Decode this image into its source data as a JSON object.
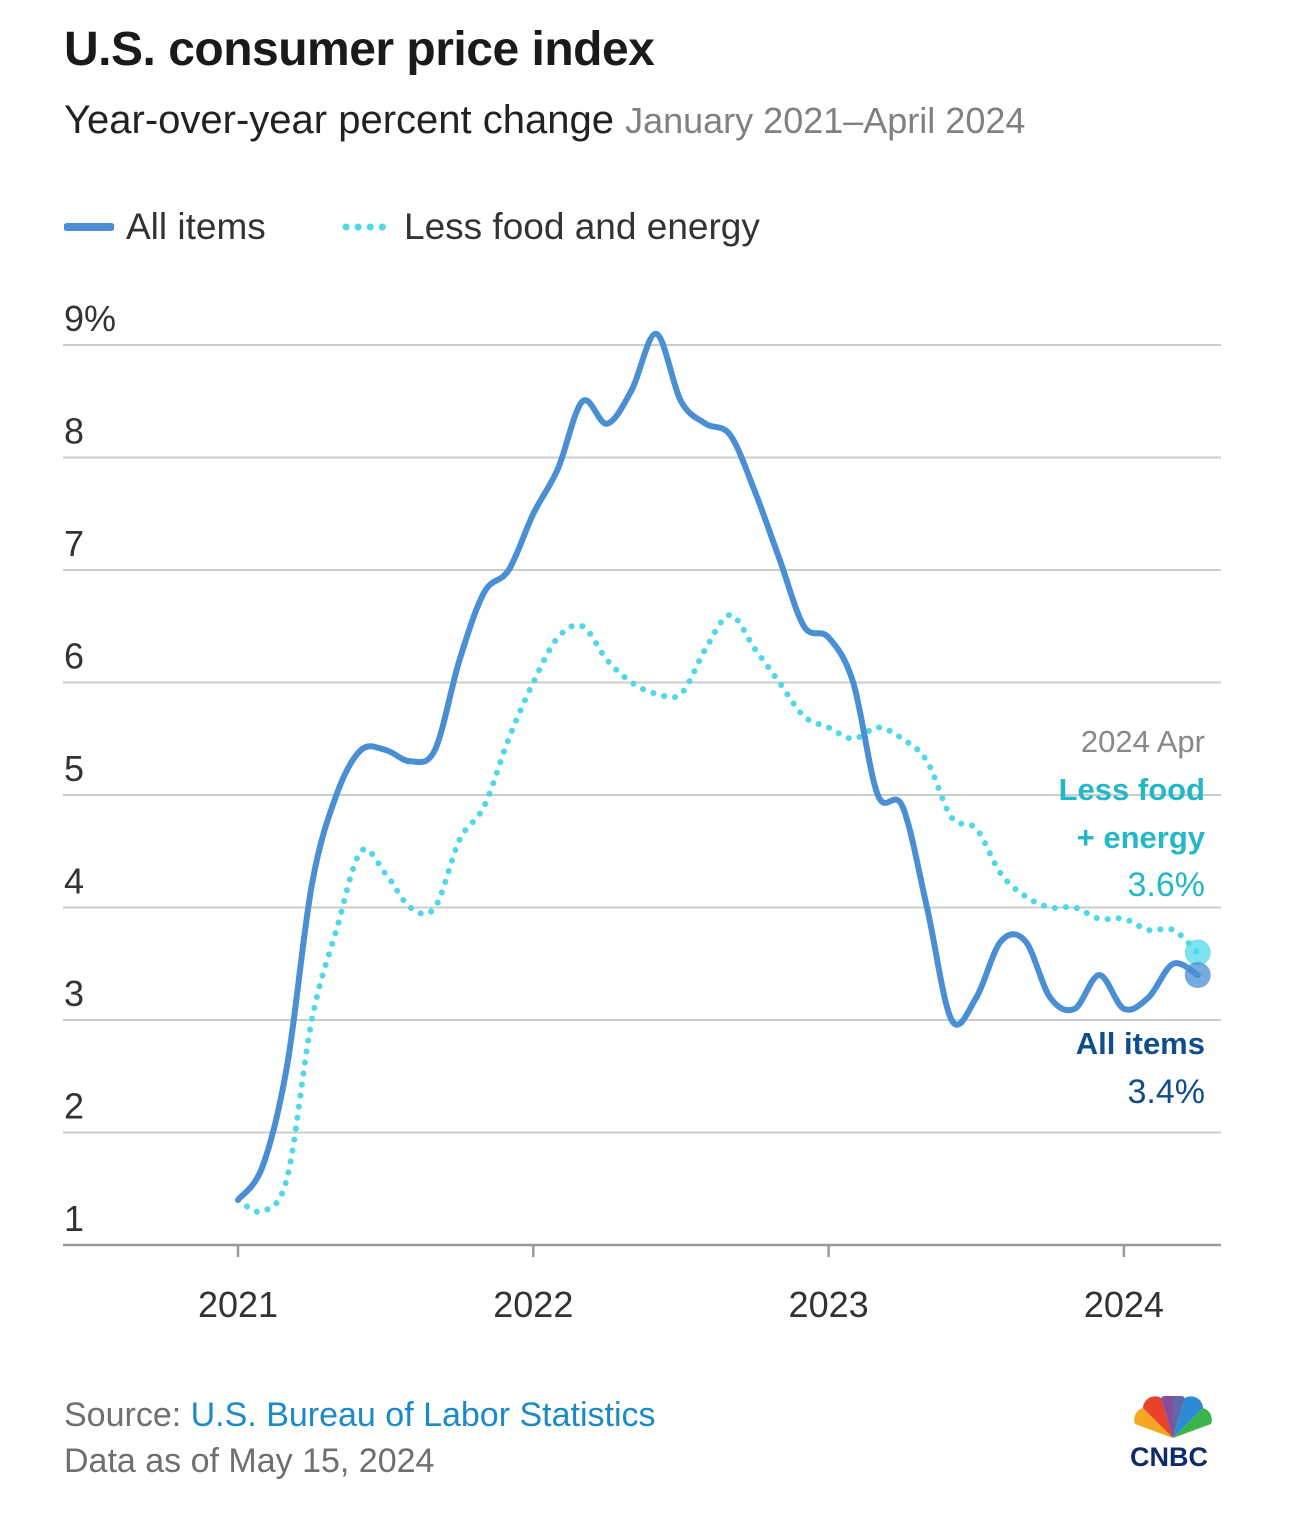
{
  "header": {
    "title": "U.S. consumer price index",
    "subtitle": "Year-over-year percent change",
    "date_range": "January 2021–April 2024"
  },
  "legend": {
    "items": [
      {
        "label": "All items",
        "style": "solid",
        "color": "#4a8fd4"
      },
      {
        "label": "Less food and energy",
        "style": "dotted",
        "color": "#4fd8e8"
      }
    ]
  },
  "annotations": {
    "date": "2024 Apr",
    "core_label_line1": "Less food",
    "core_label_line2": "+ energy",
    "core_value": "3.6%",
    "all_label": "All items",
    "all_value": "3.4%"
  },
  "footer": {
    "source_prefix": "Source: ",
    "source_name": "U.S. Bureau of Labor Statistics",
    "data_as_of": "Data as of May 15, 2024"
  },
  "logo": {
    "text": "CNBC"
  },
  "colors": {
    "all_items": "#4a8fd4",
    "core": "#4fd8e8",
    "core_label": "#22b8c8",
    "all_label": "#0f4e8a",
    "grid": "#cccccc",
    "axis": "#999999"
  },
  "chart_data": {
    "type": "line",
    "title": "U.S. consumer price index",
    "subtitle": "Year-over-year percent change",
    "ylim": [
      1,
      9
    ],
    "yticks": [
      {
        "value": 9,
        "label": "9%"
      },
      {
        "value": 8,
        "label": "8"
      },
      {
        "value": 7,
        "label": "7"
      },
      {
        "value": 6,
        "label": "6"
      },
      {
        "value": 5,
        "label": "5"
      },
      {
        "value": 4,
        "label": "4"
      },
      {
        "value": 3,
        "label": "3"
      },
      {
        "value": 2,
        "label": "2"
      },
      {
        "value": 1,
        "label": "1"
      }
    ],
    "xticks": [
      "2021",
      "2022",
      "2023",
      "2024"
    ],
    "x": [
      "2021-01",
      "2021-02",
      "2021-03",
      "2021-04",
      "2021-05",
      "2021-06",
      "2021-07",
      "2021-08",
      "2021-09",
      "2021-10",
      "2021-11",
      "2021-12",
      "2022-01",
      "2022-02",
      "2022-03",
      "2022-04",
      "2022-05",
      "2022-06",
      "2022-07",
      "2022-08",
      "2022-09",
      "2022-10",
      "2022-11",
      "2022-12",
      "2023-01",
      "2023-02",
      "2023-03",
      "2023-04",
      "2023-05",
      "2023-06",
      "2023-07",
      "2023-08",
      "2023-09",
      "2023-10",
      "2023-11",
      "2023-12",
      "2024-01",
      "2024-02",
      "2024-03",
      "2024-04"
    ],
    "series": [
      {
        "name": "All items",
        "style": "solid",
        "values": [
          1.4,
          1.7,
          2.6,
          4.2,
          5.0,
          5.4,
          5.4,
          5.3,
          5.4,
          6.2,
          6.8,
          7.0,
          7.5,
          7.9,
          8.5,
          8.3,
          8.6,
          9.1,
          8.5,
          8.3,
          8.2,
          7.7,
          7.1,
          6.5,
          6.4,
          6.0,
          5.0,
          4.9,
          4.0,
          3.0,
          3.2,
          3.7,
          3.7,
          3.2,
          3.1,
          3.4,
          3.1,
          3.2,
          3.5,
          3.4
        ]
      },
      {
        "name": "Less food and energy",
        "style": "dotted",
        "values": [
          1.4,
          1.3,
          1.6,
          3.0,
          3.8,
          4.5,
          4.3,
          4.0,
          4.0,
          4.6,
          4.9,
          5.5,
          6.0,
          6.4,
          6.5,
          6.2,
          6.0,
          5.9,
          5.9,
          6.3,
          6.6,
          6.3,
          6.0,
          5.7,
          5.6,
          5.5,
          5.6,
          5.5,
          5.3,
          4.8,
          4.7,
          4.3,
          4.1,
          4.0,
          4.0,
          3.9,
          3.9,
          3.8,
          3.8,
          3.6
        ]
      }
    ],
    "grid": true,
    "legend_position": "top-left"
  }
}
